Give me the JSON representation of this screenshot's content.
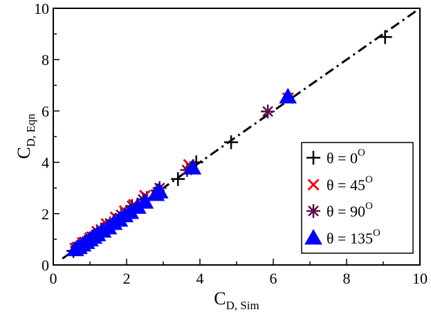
{
  "chart_data": {
    "type": "scatter",
    "title": "",
    "xlabel": {
      "main": "C",
      "sub": "D, Sim"
    },
    "ylabel": {
      "main": "C",
      "sub": "D, Eqn"
    },
    "xlim": [
      0,
      10
    ],
    "ylim": [
      0,
      10
    ],
    "xticks": [
      0,
      2,
      4,
      6,
      8,
      10
    ],
    "yticks": [
      0,
      2,
      4,
      6,
      8,
      10
    ],
    "xtick_labels": [
      "0",
      "2",
      "4",
      "6",
      "8",
      "10"
    ],
    "ytick_labels": [
      "0",
      "2",
      "4",
      "6",
      "8",
      "10"
    ],
    "grid": false,
    "legend_position": "lower-right",
    "reference_line": {
      "name": "y = x",
      "style": "dash-dot",
      "color": "#000000",
      "from": [
        0.25,
        0.25
      ],
      "to": [
        10,
        10
      ]
    },
    "series": [
      {
        "name": "θ = 0°",
        "legend": {
          "base": "θ = 0",
          "sup": "O"
        },
        "marker": "plus",
        "color": "#000000",
        "points": [
          [
            0.55,
            0.55
          ],
          [
            0.7,
            0.72
          ],
          [
            0.85,
            0.88
          ],
          [
            1.0,
            1.02
          ],
          [
            1.2,
            1.25
          ],
          [
            1.45,
            1.5
          ],
          [
            1.7,
            1.76
          ],
          [
            2.0,
            2.05
          ],
          [
            2.3,
            2.35
          ],
          [
            2.55,
            2.6
          ],
          [
            2.85,
            2.9
          ],
          [
            3.4,
            3.35
          ],
          [
            3.9,
            4.0
          ],
          [
            4.85,
            4.78
          ],
          [
            9.05,
            8.88
          ]
        ]
      },
      {
        "name": "θ = 45°",
        "legend": {
          "base": "θ = 45",
          "sup": "O"
        },
        "marker": "x",
        "color": "#ff0000",
        "points": [
          [
            0.6,
            0.65
          ],
          [
            0.8,
            0.86
          ],
          [
            1.0,
            1.05
          ],
          [
            1.2,
            1.3
          ],
          [
            1.45,
            1.6
          ],
          [
            1.7,
            1.86
          ],
          [
            1.95,
            2.1
          ],
          [
            2.2,
            2.35
          ],
          [
            2.5,
            2.7
          ],
          [
            3.7,
            3.9
          ],
          [
            6.4,
            6.5
          ]
        ]
      },
      {
        "name": "θ = 90°",
        "legend": {
          "base": "θ = 90",
          "sup": "O"
        },
        "marker": "asterisk",
        "color": "#5c0f48",
        "points": [
          [
            0.65,
            0.7
          ],
          [
            0.85,
            0.9
          ],
          [
            1.05,
            1.1
          ],
          [
            1.3,
            1.38
          ],
          [
            1.55,
            1.62
          ],
          [
            1.85,
            1.95
          ],
          [
            2.15,
            2.3
          ],
          [
            2.45,
            2.55
          ],
          [
            2.9,
            3.0
          ],
          [
            3.65,
            3.7
          ],
          [
            5.85,
            5.98
          ]
        ]
      },
      {
        "name": "θ = 135°",
        "legend": {
          "base": "θ = 135",
          "sup": "O"
        },
        "marker": "triangle",
        "color": "#0000ff",
        "points": [
          [
            0.6,
            0.6
          ],
          [
            0.7,
            0.68
          ],
          [
            0.8,
            0.78
          ],
          [
            0.9,
            0.88
          ],
          [
            1.0,
            0.98
          ],
          [
            1.1,
            1.08
          ],
          [
            1.2,
            1.18
          ],
          [
            1.35,
            1.32
          ],
          [
            1.5,
            1.45
          ],
          [
            1.65,
            1.62
          ],
          [
            1.8,
            1.75
          ],
          [
            1.95,
            1.92
          ],
          [
            2.1,
            2.05
          ],
          [
            2.3,
            2.25
          ],
          [
            2.5,
            2.45
          ],
          [
            2.8,
            2.75
          ],
          [
            2.9,
            2.85
          ],
          [
            3.8,
            3.78
          ],
          [
            6.4,
            6.55
          ]
        ]
      }
    ]
  }
}
